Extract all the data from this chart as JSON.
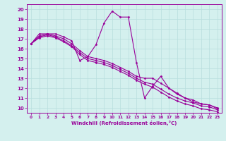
{
  "bg_color": "#d4f0ee",
  "line_color": "#990099",
  "grid_color": "#b8dedd",
  "xlabel": "Windchill (Refroidissement éolien,°C)",
  "xlabel_color": "#990099",
  "tick_color": "#990099",
  "xlim": [
    -0.5,
    23.5
  ],
  "ylim": [
    9.5,
    20.5
  ],
  "yticks": [
    10,
    11,
    12,
    13,
    14,
    15,
    16,
    17,
    18,
    19,
    20
  ],
  "xticks": [
    0,
    1,
    2,
    3,
    4,
    5,
    6,
    7,
    8,
    9,
    10,
    11,
    12,
    13,
    14,
    15,
    16,
    17,
    18,
    19,
    20,
    21,
    22,
    23
  ],
  "series": [
    [
      16.5,
      17.5,
      17.5,
      17.5,
      17.2,
      16.8,
      14.8,
      15.2,
      16.4,
      18.6,
      19.8,
      19.2,
      19.2,
      14.6,
      11.0,
      12.2,
      13.2,
      12.0,
      11.4,
      11.0,
      10.6,
      10.4,
      10.3,
      9.9
    ],
    [
      16.5,
      17.3,
      17.5,
      17.3,
      17.0,
      16.5,
      15.8,
      15.2,
      15.0,
      14.8,
      14.5,
      14.1,
      13.7,
      13.2,
      13.0,
      13.0,
      12.5,
      12.0,
      11.5,
      11.0,
      10.8,
      10.4,
      10.3,
      10.0
    ],
    [
      16.5,
      17.2,
      17.4,
      17.2,
      16.8,
      16.3,
      15.6,
      15.0,
      14.8,
      14.6,
      14.3,
      13.9,
      13.5,
      13.0,
      12.6,
      12.4,
      11.9,
      11.4,
      11.0,
      10.7,
      10.5,
      10.2,
      10.1,
      9.8
    ],
    [
      16.5,
      17.1,
      17.3,
      17.1,
      16.7,
      16.2,
      15.4,
      14.8,
      14.6,
      14.4,
      14.1,
      13.7,
      13.3,
      12.8,
      12.4,
      12.1,
      11.6,
      11.1,
      10.7,
      10.4,
      10.2,
      9.9,
      9.8,
      9.6
    ]
  ]
}
